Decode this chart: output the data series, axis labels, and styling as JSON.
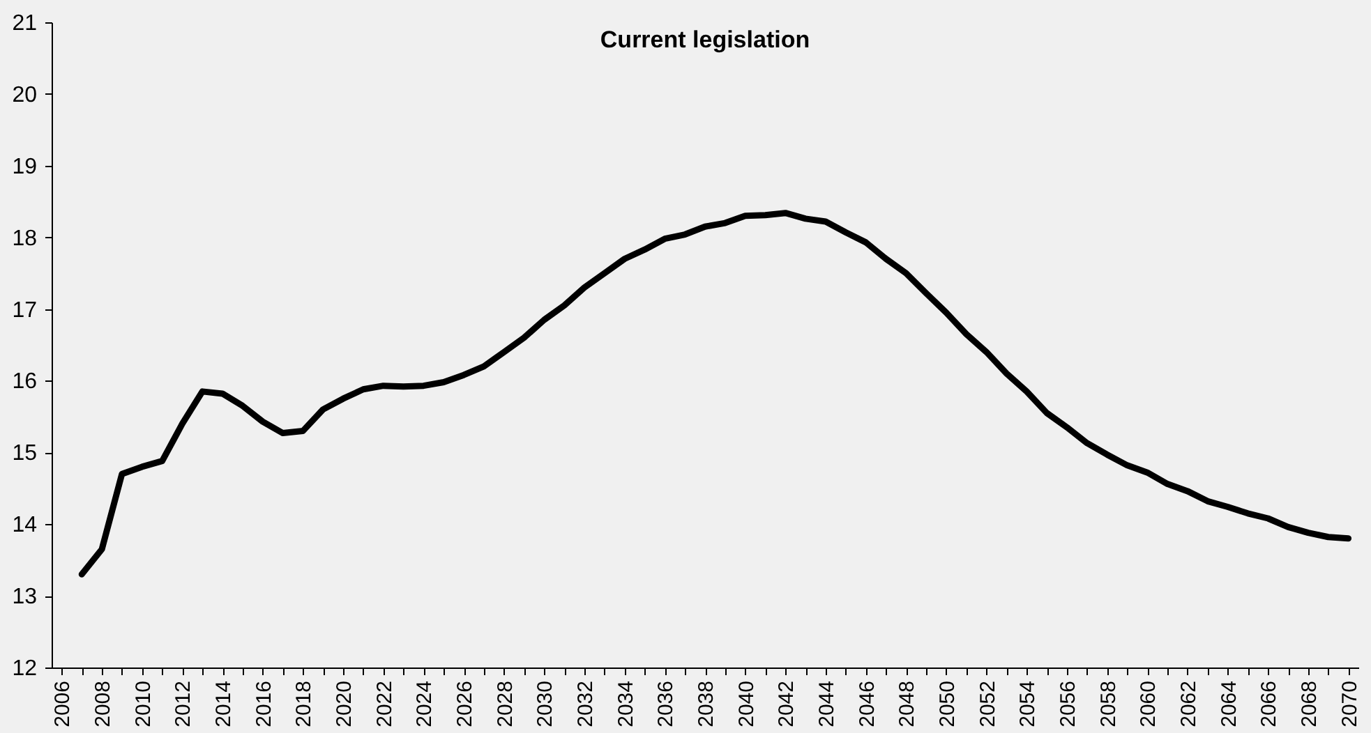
{
  "chart_data": {
    "type": "line",
    "title": "Current legislation",
    "categories": [
      "2006",
      null,
      "2008",
      null,
      "2010",
      null,
      "2012",
      null,
      "2014",
      null,
      "2016",
      null,
      "2018",
      null,
      "2020",
      null,
      "2022",
      null,
      "2024",
      null,
      "2026",
      null,
      "2028",
      null,
      "2030",
      null,
      "2032",
      null,
      "2034",
      null,
      "2036",
      null,
      "2038",
      null,
      "2040",
      null,
      "2042",
      null,
      "2044",
      null,
      "2046",
      null,
      "2048",
      null,
      "2050",
      null,
      "2052",
      null,
      "2054",
      null,
      "2056",
      null,
      "2058",
      null,
      "2060",
      null,
      "2062",
      null,
      "2064",
      null,
      "2066",
      null,
      "2068",
      null,
      "2070"
    ],
    "series": [
      {
        "color": "#000000",
        "values": [
          null,
          13.3,
          13.65,
          14.7,
          14.8,
          14.88,
          15.4,
          15.85,
          15.82,
          15.65,
          15.43,
          15.27,
          15.3,
          15.6,
          15.75,
          15.88,
          15.93,
          15.92,
          15.93,
          15.98,
          16.08,
          16.2,
          16.4,
          16.6,
          16.85,
          17.05,
          17.3,
          17.5,
          17.7,
          17.83,
          17.98,
          18.04,
          18.15,
          18.2,
          18.3,
          18.31,
          18.34,
          18.26,
          18.22,
          18.07,
          17.93,
          17.7,
          17.5,
          17.22,
          16.95,
          16.65,
          16.4,
          16.1,
          15.85,
          15.55,
          15.35,
          15.13,
          14.97,
          14.82,
          14.72,
          14.56,
          14.46,
          14.32,
          14.24,
          14.15,
          14.08,
          13.96,
          13.88,
          13.82,
          13.8
        ]
      }
    ],
    "ylim": [
      12,
      21
    ],
    "yticks": [
      12,
      13,
      14,
      15,
      16,
      17,
      18,
      19,
      20,
      21
    ],
    "grid": false,
    "marker": "none",
    "line_style": "solid"
  }
}
